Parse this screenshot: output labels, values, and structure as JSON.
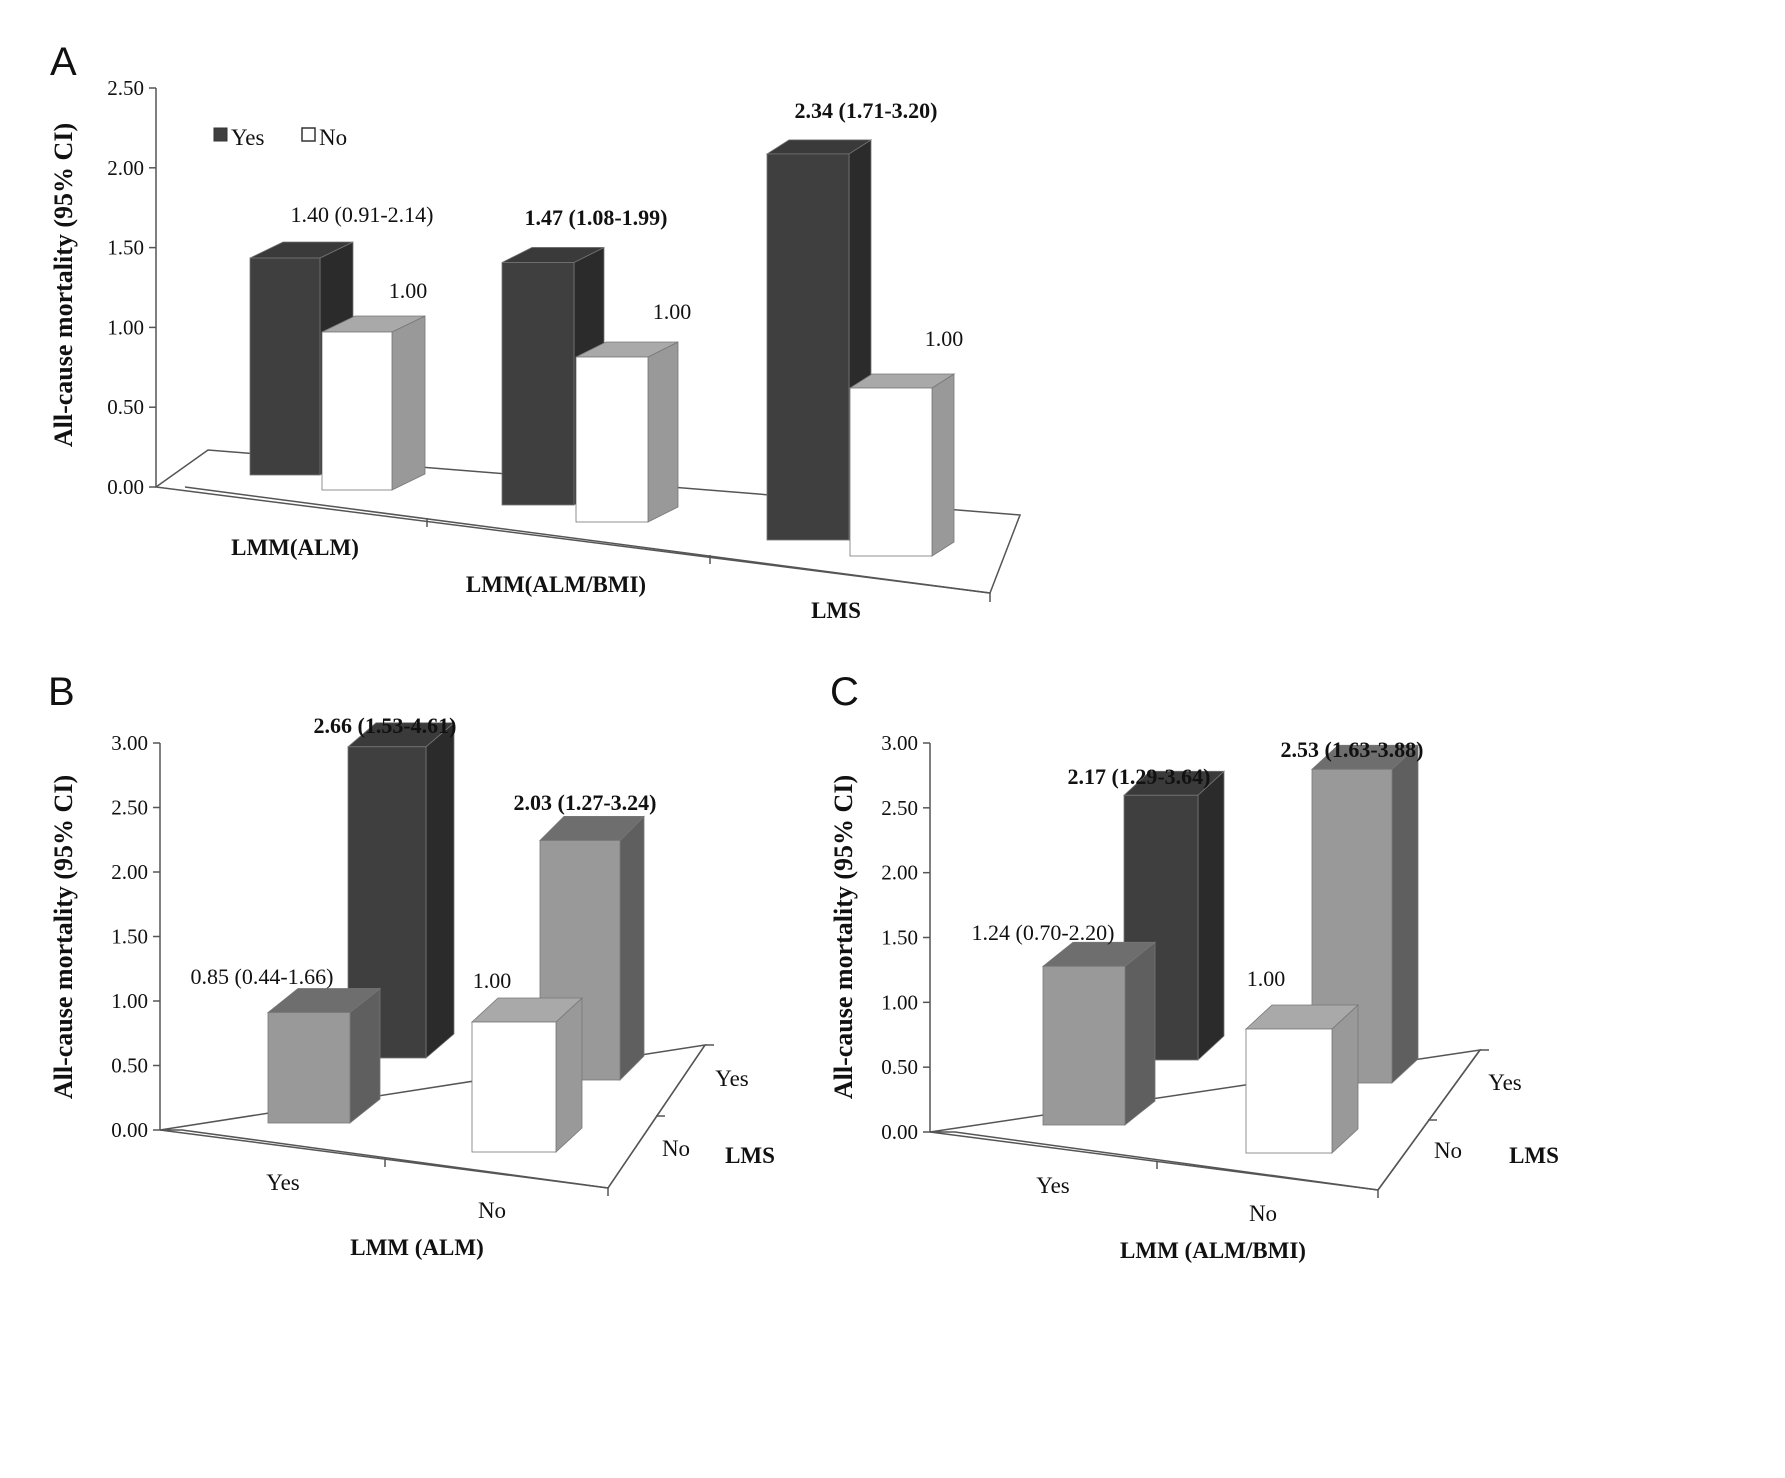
{
  "chart_data": [
    {
      "panel": "A",
      "type": "bar",
      "ylabel": "All-cause mortality (95% CI)",
      "ylim": [
        0,
        2.5
      ],
      "yticks": [
        "0.00",
        "0.50",
        "1.00",
        "1.50",
        "2.00",
        "2.50"
      ],
      "categories": [
        "LMM(ALM)",
        "LMM(ALM/BMI)",
        "LMS"
      ],
      "legend": [
        {
          "name": "Yes",
          "color": "#3f3f3f"
        },
        {
          "name": "No",
          "color": "#ffffff"
        }
      ],
      "series": [
        {
          "name": "Yes",
          "values": [
            1.4,
            1.47,
            2.34
          ],
          "labels": [
            "1.40 (0.91-2.14)",
            "1.47 (1.08-1.99)",
            "2.34 (1.71-3.20)"
          ],
          "bold": [
            false,
            true,
            true
          ]
        },
        {
          "name": "No",
          "values": [
            1.0,
            1.0,
            1.0
          ],
          "labels": [
            "1.00",
            "1.00",
            "1.00"
          ],
          "bold": [
            false,
            false,
            false
          ]
        }
      ]
    },
    {
      "panel": "B",
      "type": "bar",
      "ylabel": "All-cause mortality (95% CI)",
      "ylim": [
        0,
        3.0
      ],
      "yticks": [
        "0.00",
        "0.50",
        "1.00",
        "1.50",
        "2.00",
        "2.50",
        "3.00"
      ],
      "xlabel": "LMM (ALM)",
      "x_categories": [
        "Yes",
        "No"
      ],
      "depth_label": "LMS",
      "depth_categories": [
        "No",
        "Yes"
      ],
      "bars": [
        {
          "lmm": "Yes",
          "lms": "No",
          "value": 0.85,
          "label": "0.85 (0.44-1.66)",
          "bold": false,
          "color": "#999999"
        },
        {
          "lmm": "Yes",
          "lms": "Yes",
          "value": 2.66,
          "label": "2.66 (1.53-4.61)",
          "bold": true,
          "color": "#3f3f3f"
        },
        {
          "lmm": "No",
          "lms": "No",
          "value": 1.0,
          "label": "1.00",
          "bold": false,
          "color": "#ffffff"
        },
        {
          "lmm": "No",
          "lms": "Yes",
          "value": 2.03,
          "label": "2.03 (1.27-3.24)",
          "bold": true,
          "color": "#999999"
        }
      ]
    },
    {
      "panel": "C",
      "type": "bar",
      "ylabel": "All-cause mortality (95% CI)",
      "ylim": [
        0,
        3.0
      ],
      "yticks": [
        "0.00",
        "0.50",
        "1.00",
        "1.50",
        "2.00",
        "2.50",
        "3.00"
      ],
      "xlabel": "LMM (ALM/BMI)",
      "x_categories": [
        "Yes",
        "No"
      ],
      "depth_label": "LMS",
      "depth_categories": [
        "No",
        "Yes"
      ],
      "bars": [
        {
          "lmm": "Yes",
          "lms": "No",
          "value": 1.24,
          "label": "1.24 (0.70-2.20)",
          "bold": false,
          "color": "#999999"
        },
        {
          "lmm": "Yes",
          "lms": "Yes",
          "value": 2.17,
          "label": "2.17 (1.29-3.64)",
          "bold": true,
          "color": "#3f3f3f"
        },
        {
          "lmm": "No",
          "lms": "No",
          "value": 1.0,
          "label": "1.00",
          "bold": false,
          "color": "#ffffff"
        },
        {
          "lmm": "No",
          "lms": "Yes",
          "value": 2.53,
          "label": "2.53 (1.63-3.88)",
          "bold": true,
          "color": "#999999"
        }
      ]
    }
  ]
}
